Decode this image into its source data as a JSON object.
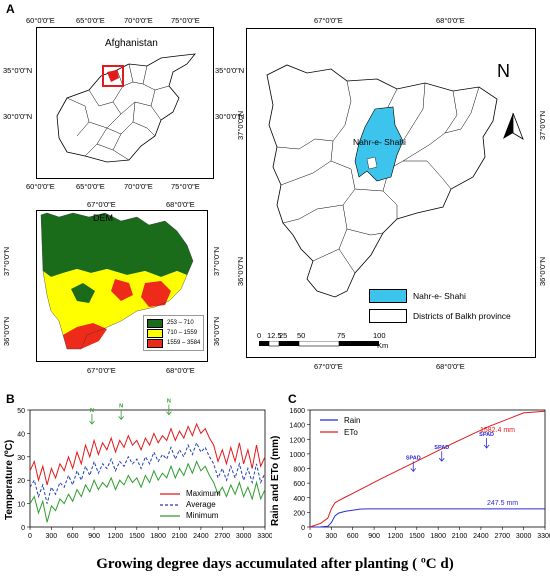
{
  "panel_a": {
    "letter": "A",
    "afghanistan_map": {
      "label": "Afghanistan",
      "top_ticks": [
        "60°0'0\"E",
        "65°0'0\"E",
        "70°0'0\"E",
        "75°0'0\"E"
      ],
      "bottom_ticks": [
        "60°0'0\"E",
        "65°0'0\"E",
        "70°0'0\"E",
        "75°0'0\"E"
      ],
      "left_ticks": [
        "35°0'0\"N",
        "30°0'0\"N"
      ],
      "right_ticks": [
        "35°0'0\"N",
        "30°0'0\"N"
      ]
    },
    "dem_map": {
      "label": "DEM",
      "top_ticks": [
        "67°0'0\"E",
        "68°0'0\"E"
      ],
      "bottom_ticks": [
        "67°0'0\"E",
        "68°0'0\"E"
      ],
      "left_ticks": [
        "37°0'0\"N",
        "36°0'0\"N"
      ],
      "right_ticks": [
        "37°0'0\"N",
        "36°0'0\"N"
      ],
      "legend": [
        {
          "label": "253 – 710",
          "color": "#1a6b1a"
        },
        {
          "label": "710 – 1559",
          "color": "#ffff00"
        },
        {
          "label": "1559 – 3584",
          "color": "#ee2a1b"
        }
      ]
    },
    "balkh_map": {
      "top_ticks": [
        "67°0'0\"E",
        "68°0'0\"E"
      ],
      "bottom_ticks": [
        "67°0'0\"E",
        "68°0'0\"E"
      ],
      "left_ticks": [
        "37°0'0\"N",
        "36°0'0\"N"
      ],
      "right_ticks": [
        "37°0'0\"N",
        "36°0'0\"N"
      ],
      "district_label": "Nahr-e- Shahi",
      "north_label": "N",
      "legend": [
        {
          "label": "Nahr-e- Shahi",
          "color": "#3cc4ec"
        },
        {
          "label": "Districts of Balkh province",
          "color": "#ffffff"
        }
      ],
      "scale_labels": [
        "0",
        "12.5",
        "25",
        "50",
        "75",
        "100"
      ],
      "scale_unit": "Km"
    }
  },
  "panel_b": {
    "letter": "B",
    "ylabel": "Temperature (ºC)",
    "legend": [
      "Maximum",
      "Average",
      "Minimum"
    ],
    "annotation": "N"
  },
  "panel_c": {
    "letter": "C",
    "ylabel": "Rain and ETo (mm)",
    "legend": [
      "Rain",
      "ETo"
    ],
    "annotations": [
      "SPAD",
      "SPAD",
      "SPAD"
    ],
    "eto_label": "1582.4 mm",
    "rain_label": "247.5 mm"
  },
  "xaxis_title": "Growing degree days accumulated after planting ( ºC d)",
  "chart_data": [
    {
      "type": "line",
      "xlabel": "",
      "ylabel": "Temperature (ºC)",
      "xlim": [
        0,
        3300
      ],
      "ylim": [
        0,
        50
      ],
      "x_ticks": [
        "0",
        "300",
        "600",
        "900",
        "1200",
        "1500",
        "1800",
        "2100",
        "2400",
        "2700",
        "3000",
        "3300"
      ],
      "y_ticks": [
        "0",
        "10",
        "20",
        "30",
        "40",
        "50"
      ],
      "series": [
        {
          "name": "Maximum",
          "color": "#e3191b",
          "dash": "solid",
          "x": [
            0,
            60,
            120,
            180,
            240,
            300,
            360,
            420,
            480,
            540,
            600,
            660,
            720,
            780,
            840,
            900,
            960,
            1020,
            1080,
            1140,
            1200,
            1260,
            1320,
            1380,
            1440,
            1500,
            1560,
            1620,
            1680,
            1740,
            1800,
            1860,
            1920,
            1980,
            2040,
            2100,
            2160,
            2220,
            2280,
            2340,
            2400,
            2460,
            2520,
            2580,
            2640,
            2700,
            2760,
            2820,
            2880,
            2940,
            3000,
            3060,
            3120,
            3180,
            3240,
            3300
          ],
          "values": [
            24,
            28,
            20,
            26,
            18,
            25,
            21,
            27,
            24,
            30,
            25,
            32,
            27,
            35,
            30,
            37,
            31,
            36,
            33,
            38,
            32,
            37,
            34,
            39,
            35,
            37,
            33,
            38,
            35,
            40,
            36,
            39,
            37,
            42,
            37,
            41,
            38,
            43,
            39,
            44,
            40,
            42,
            38,
            35,
            28,
            33,
            27,
            34,
            28,
            36,
            27,
            33,
            25,
            35,
            26,
            30
          ]
        },
        {
          "name": "Average",
          "color": "#1f3fb4",
          "dash": "dashed",
          "x": [
            0,
            60,
            120,
            180,
            240,
            300,
            360,
            420,
            480,
            540,
            600,
            660,
            720,
            780,
            840,
            900,
            960,
            1020,
            1080,
            1140,
            1200,
            1260,
            1320,
            1380,
            1440,
            1500,
            1560,
            1620,
            1680,
            1740,
            1800,
            1860,
            1920,
            1980,
            2040,
            2100,
            2160,
            2220,
            2280,
            2340,
            2400,
            2460,
            2520,
            2580,
            2640,
            2700,
            2760,
            2820,
            2880,
            2940,
            3000,
            3060,
            3120,
            3180,
            3240,
            3300
          ],
          "values": [
            17,
            20,
            13,
            18,
            10,
            17,
            14,
            19,
            17,
            22,
            18,
            24,
            20,
            26,
            22,
            28,
            23,
            27,
            25,
            29,
            24,
            28,
            26,
            30,
            27,
            29,
            25,
            30,
            27,
            32,
            28,
            31,
            29,
            34,
            29,
            33,
            30,
            35,
            31,
            36,
            32,
            34,
            30,
            27,
            21,
            25,
            20,
            26,
            21,
            27,
            20,
            25,
            19,
            27,
            19,
            23
          ]
        },
        {
          "name": "Minimum",
          "color": "#2e9e2e",
          "dash": "solid",
          "x": [
            0,
            60,
            120,
            180,
            240,
            300,
            360,
            420,
            480,
            540,
            600,
            660,
            720,
            780,
            840,
            900,
            960,
            1020,
            1080,
            1140,
            1200,
            1260,
            1320,
            1380,
            1440,
            1500,
            1560,
            1620,
            1680,
            1740,
            1800,
            1860,
            1920,
            1980,
            2040,
            2100,
            2160,
            2220,
            2280,
            2340,
            2400,
            2460,
            2520,
            2580,
            2640,
            2700,
            2760,
            2820,
            2880,
            2940,
            3000,
            3060,
            3120,
            3180,
            3240,
            3300
          ],
          "values": [
            10,
            13,
            6,
            11,
            2,
            9,
            7,
            12,
            10,
            14,
            11,
            16,
            13,
            18,
            15,
            20,
            16,
            19,
            17,
            21,
            16,
            20,
            18,
            22,
            19,
            21,
            17,
            22,
            19,
            24,
            20,
            23,
            21,
            26,
            21,
            25,
            22,
            27,
            23,
            28,
            24,
            26,
            22,
            19,
            14,
            17,
            13,
            18,
            14,
            19,
            13,
            17,
            12,
            19,
            12,
            16
          ]
        }
      ],
      "markers": [
        {
          "x": 870,
          "y": 44
        },
        {
          "x": 1280,
          "y": 46
        },
        {
          "x": 1950,
          "y": 48
        }
      ]
    },
    {
      "type": "line",
      "xlabel": "",
      "ylabel": "Rain and ETo (mm)",
      "xlim": [
        0,
        3300
      ],
      "ylim": [
        0,
        1600
      ],
      "x_ticks": [
        "0",
        "300",
        "600",
        "900",
        "1200",
        "1500",
        "1800",
        "2100",
        "2400",
        "2700",
        "3000",
        "3300"
      ],
      "y_ticks": [
        "0",
        "200",
        "400",
        "600",
        "800",
        "1000",
        "1200",
        "1400",
        "1600"
      ],
      "series": [
        {
          "name": "Rain",
          "color": "#2b2bd8",
          "x": [
            0,
            150,
            250,
            300,
            350,
            400,
            500,
            600,
            700,
            800,
            1000,
            1500,
            2000,
            2500,
            3000,
            3300
          ],
          "values": [
            0,
            2,
            10,
            60,
            150,
            190,
            215,
            230,
            245,
            247.5,
            247.5,
            247.5,
            247.5,
            247.5,
            247.5,
            247.5
          ]
        },
        {
          "name": "ETo",
          "color": "#e3191b",
          "x": [
            0,
            150,
            250,
            300,
            350,
            400,
            500,
            600,
            800,
            1000,
            1500,
            2000,
            2500,
            3000,
            3300
          ],
          "values": [
            0,
            50,
            120,
            250,
            330,
            360,
            410,
            460,
            560,
            660,
            900,
            1140,
            1370,
            1560,
            1582.4
          ]
        }
      ],
      "markers": [
        {
          "x": 1450,
          "y": 760
        },
        {
          "x": 1850,
          "y": 900
        },
        {
          "x": 2480,
          "y": 1080
        }
      ]
    }
  ]
}
